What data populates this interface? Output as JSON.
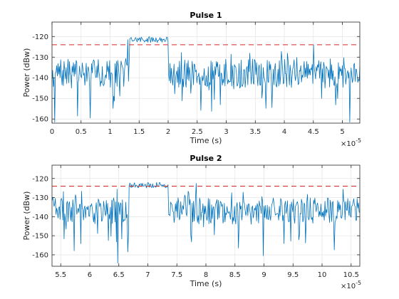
{
  "chart_data": [
    {
      "type": "line",
      "title": "Pulse 1",
      "xlabel": "Time (s)",
      "ylabel": "Power (dBw)",
      "x_multiplier_label": "×10",
      "x_multiplier_exp": "-5",
      "xlim": [
        0,
        5.3
      ],
      "ylim": [
        -162,
        -113
      ],
      "xticks": [
        0,
        0.5,
        1,
        1.5,
        2,
        2.5,
        3,
        3.5,
        4,
        4.5,
        5
      ],
      "xtick_labels": [
        "0",
        "0.5",
        "1",
        "1.5",
        "2",
        "2.5",
        "3",
        "3.5",
        "4",
        "4.5",
        "5"
      ],
      "yticks": [
        -160,
        -150,
        -140,
        -130,
        -120
      ],
      "ytick_labels": [
        "-160",
        "-150",
        "-140",
        "-130",
        "-120"
      ],
      "grid": true,
      "pulse_start": 1.33,
      "pulse_end": 2.0,
      "threshold": -124,
      "noise_level": -138,
      "pulse_level": -121.5,
      "signal_color": "#0072bd",
      "threshold_color": "#d62728"
    },
    {
      "type": "line",
      "title": "Pulse 2",
      "xlabel": "Time (s)",
      "ylabel": "Power (dBw)",
      "x_multiplier_label": "×10",
      "x_multiplier_exp": "-5",
      "xlim": [
        5.35,
        10.65
      ],
      "ylim": [
        -166,
        -113
      ],
      "xticks": [
        5.5,
        6,
        6.5,
        7,
        7.5,
        8,
        8.5,
        9,
        9.5,
        10,
        10.5
      ],
      "xtick_labels": [
        "5.5",
        "6",
        "6.5",
        "7",
        "7.5",
        "8",
        "8.5",
        "9",
        "9.5",
        "10",
        "10.5"
      ],
      "yticks": [
        -160,
        -150,
        -140,
        -130,
        -120
      ],
      "ytick_labels": [
        "-160",
        "-150",
        "-140",
        "-130",
        "-120"
      ],
      "grid": true,
      "pulse_start": 6.67,
      "pulse_end": 7.35,
      "threshold": -124,
      "noise_level": -137,
      "pulse_level": -123.5,
      "signal_color": "#0072bd",
      "threshold_color": "#d62728"
    }
  ]
}
